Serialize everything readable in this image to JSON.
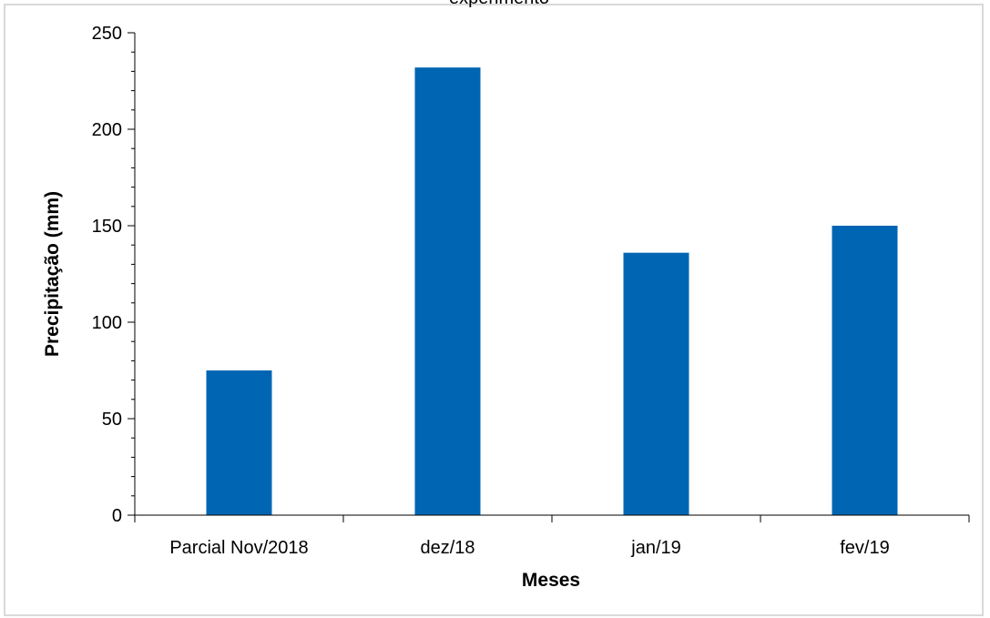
{
  "chart_data": {
    "type": "bar",
    "title": "experimento",
    "xlabel": "Meses",
    "ylabel": "Precipitação (mm)",
    "categories": [
      "Parcial Nov/2018",
      "dez/18",
      "jan/19",
      "fev/19"
    ],
    "values": [
      75,
      232,
      136,
      150
    ],
    "ylim": [
      0,
      250
    ],
    "yticks": [
      0,
      50,
      100,
      150,
      200,
      250
    ],
    "grid": false,
    "legend": "none",
    "bar_color": "#0066b3"
  }
}
